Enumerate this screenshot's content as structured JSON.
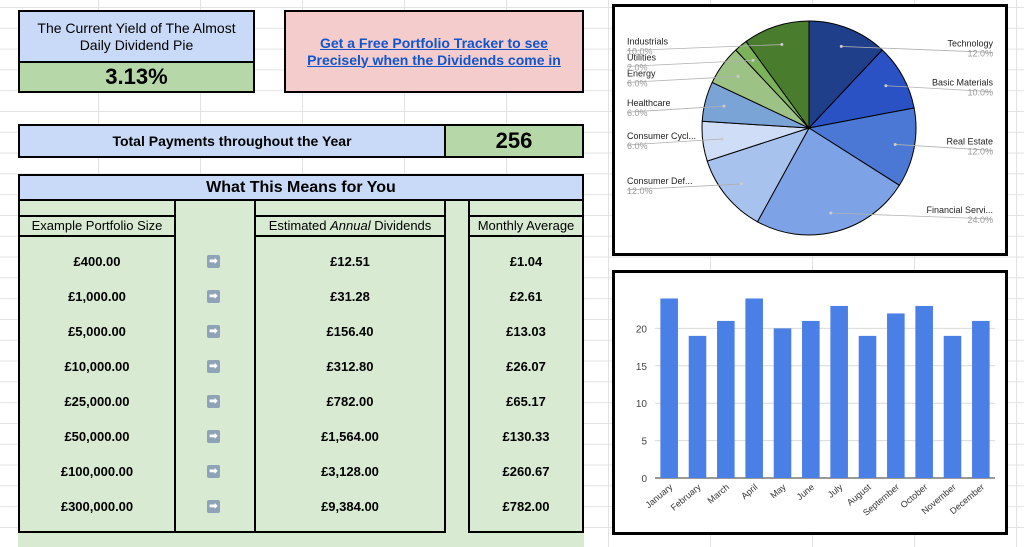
{
  "yield": {
    "title": "The Current Yield of The Almost Daily Dividend Pie",
    "value": "3.13%"
  },
  "tracker": {
    "link_text": "Get a Free Portfolio Tracker to see Precisely when the Dividends come in"
  },
  "payments": {
    "label": "Total Payments throughout the Year",
    "value": "256"
  },
  "means": {
    "heading": "What This Means for You"
  },
  "table": {
    "headers": {
      "size": "Example Portfolio Size",
      "annual_prefix": "Estimated ",
      "annual_em": "Annual",
      "annual_suffix": " Dividends",
      "monthly": "Monthly Average"
    },
    "rows": [
      {
        "size": "£400.00",
        "annual": "£12.51",
        "monthly": "£1.04"
      },
      {
        "size": "£1,000.00",
        "annual": "£31.28",
        "monthly": "£2.61"
      },
      {
        "size": "£5,000.00",
        "annual": "£156.40",
        "monthly": "£13.03"
      },
      {
        "size": "£10,000.00",
        "annual": "£312.80",
        "monthly": "£26.07"
      },
      {
        "size": "£25,000.00",
        "annual": "£782.00",
        "monthly": "£65.17"
      },
      {
        "size": "£50,000.00",
        "annual": "£1,564.00",
        "monthly": "£130.33"
      },
      {
        "size": "£100,000.00",
        "annual": "£3,128.00",
        "monthly": "£260.67"
      },
      {
        "size": "£300,000.00",
        "annual": "£9,384.00",
        "monthly": "£782.00"
      }
    ],
    "arrow_icon": "right-arrow-icon"
  },
  "colors": {
    "blue_header": "#c9daf8",
    "green_value": "#b6d7a8",
    "pink": "#f4cccc",
    "table_green": "#d9ead3",
    "link": "#1155cc"
  },
  "chart_data": [
    {
      "type": "pie",
      "slices": [
        {
          "label": "Technology",
          "value_label": "12.0%",
          "value": 12.0,
          "color": "#1f3f8a"
        },
        {
          "label": "Basic Materials",
          "value_label": "10.0%",
          "value": 10.0,
          "color": "#2a52c4"
        },
        {
          "label": "Real Estate",
          "value_label": "12.0%",
          "value": 12.0,
          "color": "#4a78d4"
        },
        {
          "label": "Financial Servi...",
          "value_label": "24.0%",
          "value": 24.0,
          "color": "#7da2e6"
        },
        {
          "label": "Consumer Def...",
          "value_label": "12.0%",
          "value": 12.0,
          "color": "#a8c2ee"
        },
        {
          "label": "Consumer Cycl...",
          "value_label": "6.0%",
          "value": 6.0,
          "color": "#cfddf6"
        },
        {
          "label": "Healthcare",
          "value_label": "6.0%",
          "value": 6.0,
          "color": "#7aa3d6"
        },
        {
          "label": "Energy",
          "value_label": "6.0%",
          "value": 6.0,
          "color": "#9dc285"
        },
        {
          "label": "Utilities",
          "value_label": "2.0%",
          "value": 2.0,
          "color": "#7cb35a"
        },
        {
          "label": "Industrials",
          "value_label": "10.0%",
          "value": 10.0,
          "color": "#4a7c2e"
        }
      ]
    },
    {
      "type": "bar",
      "categories": [
        "January",
        "February",
        "March",
        "April",
        "May",
        "June",
        "July",
        "August",
        "September",
        "October",
        "November",
        "December"
      ],
      "values": [
        24,
        19,
        21,
        24,
        20,
        21,
        23,
        19,
        22,
        23,
        19,
        21
      ],
      "ylim": [
        0,
        25
      ],
      "yticks": [
        "0",
        "5",
        "10",
        "15",
        "20"
      ],
      "color": "#4a7fe6"
    }
  ]
}
